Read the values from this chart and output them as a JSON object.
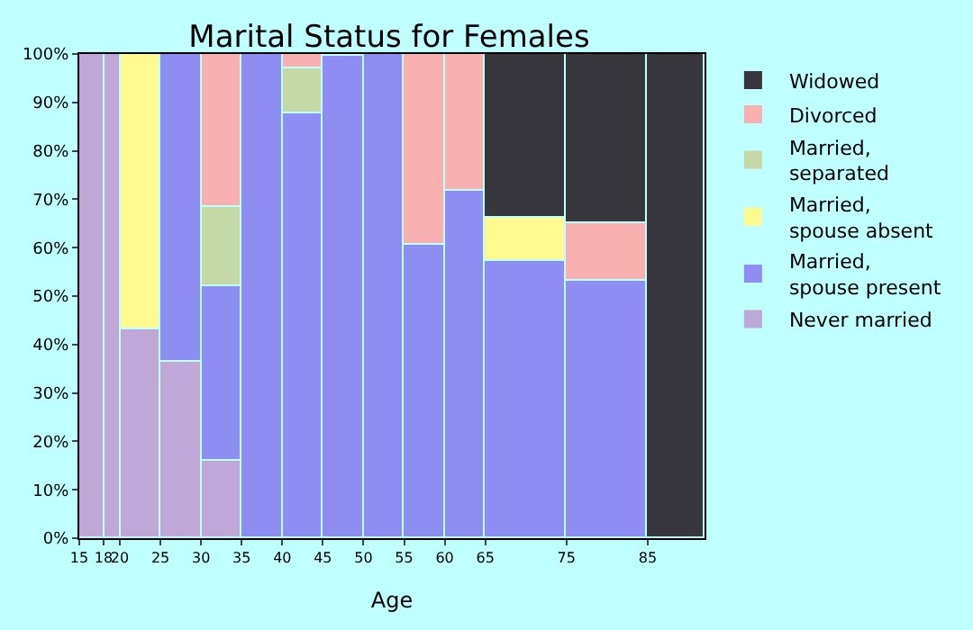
{
  "chart_data": {
    "type": "bar",
    "stacked": true,
    "title": "Marital Status for Females",
    "xlabel": "Age",
    "x": [
      16.5,
      19,
      22.5,
      27.5,
      32.5,
      37.5,
      42.5,
      47.5,
      52.5,
      57.5,
      62.5,
      70,
      80,
      88.5
    ],
    "series": [
      {
        "name": "Never married",
        "color": "#bfa8d8",
        "values": [
          100,
          100,
          43,
          36.3,
          16.1,
          null,
          null,
          null,
          null,
          null,
          null,
          null,
          null,
          null
        ]
      },
      {
        "name": "Married, spouse present",
        "color": "#8e8ef2",
        "values": [
          null,
          null,
          null,
          63.7,
          36.1,
          100,
          87.7,
          99.5,
          100,
          60.5,
          71.9,
          57.2,
          53.2,
          null
        ]
      },
      {
        "name": "Married, spouse absent",
        "color": "#fffa90",
        "values": [
          null,
          null,
          57,
          null,
          null,
          null,
          null,
          null,
          null,
          null,
          null,
          8.8,
          null,
          null
        ]
      },
      {
        "name": "Married, separated",
        "color": "#c4d9a6",
        "values": [
          null,
          null,
          null,
          null,
          16.1,
          null,
          9.5,
          null,
          null,
          null,
          null,
          null,
          null,
          null
        ]
      },
      {
        "name": "Divorced",
        "color": "#f8b0b0",
        "values": [
          null,
          null,
          null,
          null,
          31.7,
          null,
          2.8,
          0.5,
          null,
          39.5,
          28.1,
          null,
          11.7,
          null
        ]
      },
      {
        "name": "Widowed",
        "color": "#36363c",
        "values": [
          null,
          null,
          null,
          null,
          null,
          null,
          null,
          null,
          null,
          null,
          null,
          34,
          35.1,
          100
        ]
      }
    ],
    "xlim": [
      15,
      92
    ],
    "xticks": [
      15,
      18,
      20,
      25,
      30,
      35,
      40,
      45,
      50,
      55,
      60,
      65,
      75,
      85
    ],
    "ylim": [
      0,
      100
    ],
    "yticks": [
      {
        "value": 0,
        "label": "0%"
      },
      {
        "value": 10,
        "label": "10%"
      },
      {
        "value": 20,
        "label": "20%"
      },
      {
        "value": 30,
        "label": "30%"
      },
      {
        "value": 40,
        "label": "40%"
      },
      {
        "value": 50,
        "label": "50%"
      },
      {
        "value": 60,
        "label": "60%"
      },
      {
        "value": 70,
        "label": "70%"
      },
      {
        "value": 80,
        "label": "80%"
      },
      {
        "value": 90,
        "label": "90%"
      },
      {
        "value": 100,
        "label": "100%"
      }
    ],
    "legend": "right"
  }
}
